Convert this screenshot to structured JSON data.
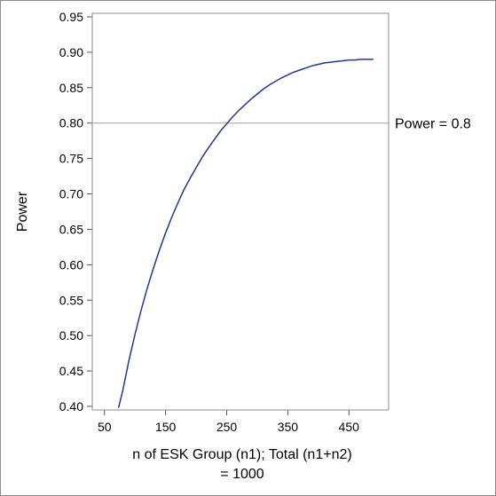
{
  "chart_data": {
    "type": "line",
    "xlabel": [
      "n of ESK Group (n1); Total (n1+n2)",
      "= 1000"
    ],
    "ylabel": "Power",
    "xlim": [
      30,
      515
    ],
    "ylim": [
      0.395,
      0.955
    ],
    "xticks": [
      50,
      150,
      250,
      350,
      450
    ],
    "yticks": [
      "0.40",
      "0.45",
      "0.50",
      "0.55",
      "0.60",
      "0.65",
      "0.70",
      "0.75",
      "0.80",
      "0.85",
      "0.90",
      "0.95"
    ],
    "series": [
      {
        "color": "#1f3a93",
        "x": [
          73,
          80,
          90,
          100,
          110,
          120,
          130,
          140,
          150,
          160,
          170,
          180,
          190,
          200,
          210,
          220,
          230,
          240,
          250,
          260,
          270,
          280,
          290,
          300,
          310,
          320,
          330,
          340,
          350,
          360,
          370,
          380,
          390,
          400,
          410,
          420,
          430,
          440,
          450,
          460,
          470,
          480,
          490
        ],
        "y": [
          0.398,
          0.423,
          0.465,
          0.502,
          0.536,
          0.567,
          0.595,
          0.621,
          0.645,
          0.667,
          0.687,
          0.706,
          0.722,
          0.737,
          0.752,
          0.765,
          0.777,
          0.789,
          0.799,
          0.809,
          0.818,
          0.826,
          0.834,
          0.841,
          0.848,
          0.854,
          0.859,
          0.864,
          0.868,
          0.872,
          0.875,
          0.878,
          0.881,
          0.883,
          0.885,
          0.886,
          0.887,
          0.888,
          0.889,
          0.889,
          0.89,
          0.89,
          0.89
        ]
      }
    ],
    "reference_line": {
      "y": 0.8,
      "label": "Power = 0.8",
      "color": "#a0a0a0"
    }
  }
}
